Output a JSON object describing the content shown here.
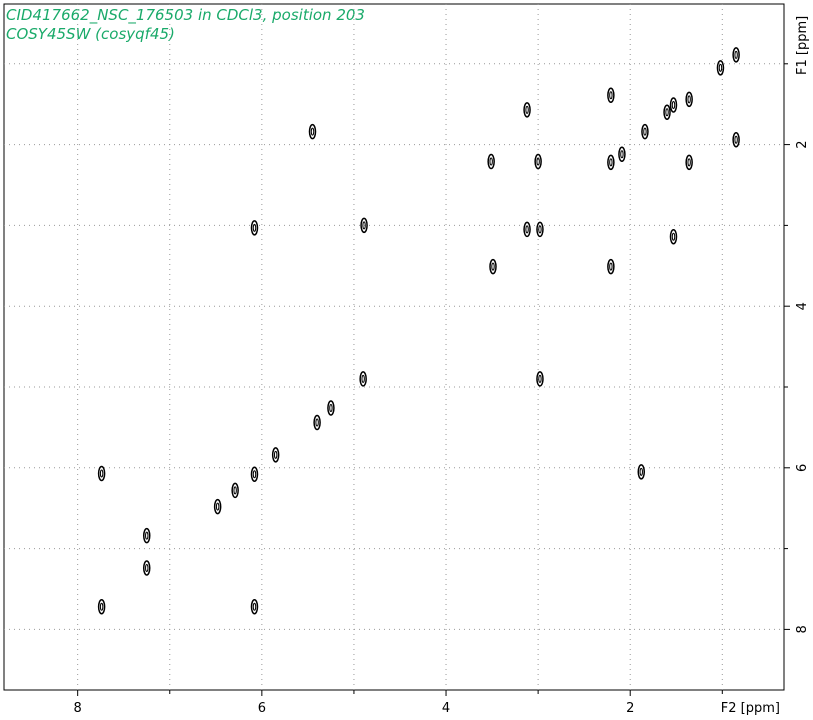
{
  "chart_data": {
    "type": "scatter",
    "title": "CID417662_NSC_176503 in CDCl3, position 203",
    "subtitle": "COSY45SW (cosyqf45)",
    "x_label": "F2 [ppm]",
    "y_label": "F1 [ppm]",
    "xlim": [
      8.8,
      0.33
    ],
    "ylim": [
      0.26,
      8.75
    ],
    "y_reversed": true,
    "xticks": [
      8,
      6,
      4,
      2
    ],
    "yticks": [
      2,
      4,
      6,
      8
    ],
    "minor_xticks": [
      7,
      5,
      3,
      1
    ],
    "minor_yticks": [
      1,
      3,
      5,
      7
    ],
    "grid": true,
    "color": "#000000",
    "x": [
      0.85,
      1.02,
      1.36,
      1.53,
      1.6,
      1.84,
      2.09,
      2.21,
      3.12,
      3.0,
      3.12,
      2.98,
      3.49,
      4.89,
      4.9,
      5.4,
      5.25,
      5.85,
      6.08,
      6.29,
      6.48,
      7.25,
      7.74,
      7.74,
      6.08,
      2.98,
      1.36,
      1.53,
      2.21,
      2.21,
      1.88,
      0.85,
      5.45,
      6.08,
      3.51,
      7.25
    ],
    "y": [
      0.89,
      1.05,
      1.44,
      1.51,
      1.6,
      1.84,
      2.12,
      2.22,
      1.57,
      2.21,
      3.05,
      3.05,
      3.51,
      3.0,
      4.9,
      5.44,
      5.26,
      5.84,
      6.08,
      6.28,
      6.48,
      7.24,
      7.72,
      6.07,
      7.72,
      4.9,
      2.22,
      3.14,
      3.51,
      1.39,
      6.05,
      1.94,
      1.84,
      3.03,
      2.21,
      6.84
    ]
  }
}
